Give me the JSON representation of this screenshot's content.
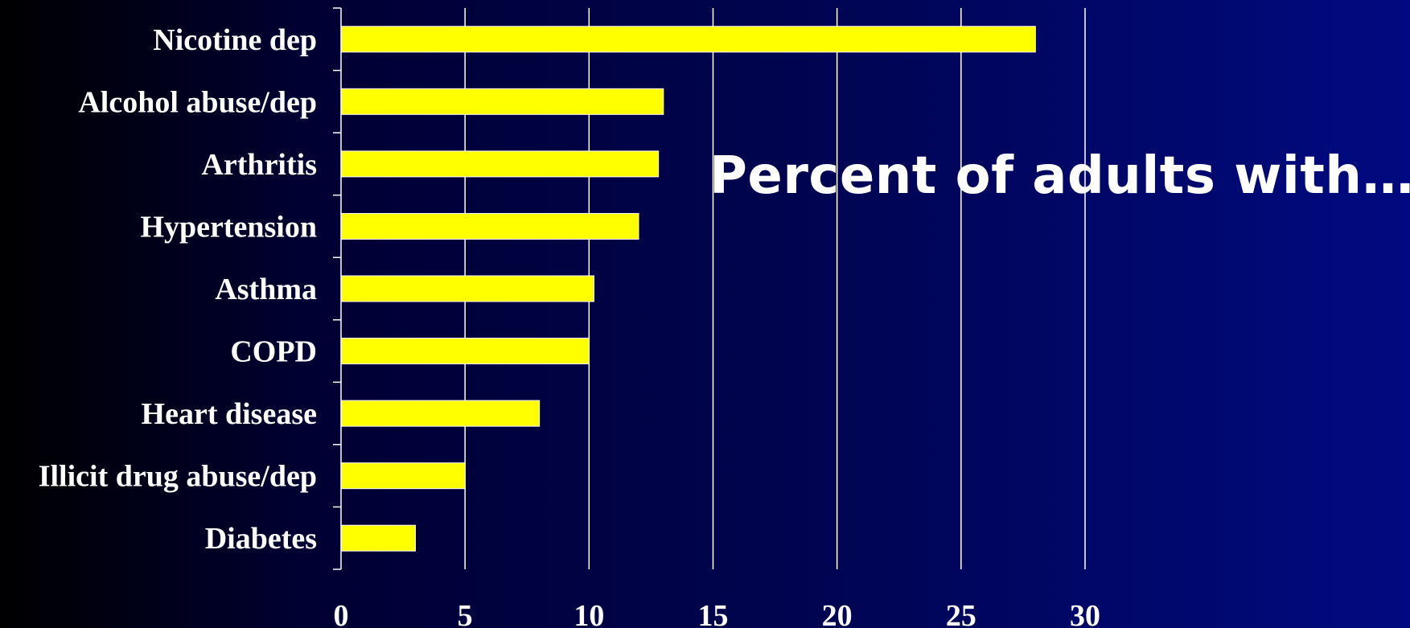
{
  "chart_data": {
    "type": "bar",
    "orientation": "horizontal",
    "title": "Percent of adults with…",
    "categories": [
      "Nicotine dep",
      "Alcohol abuse/dep",
      "Arthritis",
      "Hypertension",
      "Asthma",
      "COPD",
      "Heart disease",
      "Illicit drug abuse/dep",
      "Diabetes"
    ],
    "values": [
      28,
      13,
      12.8,
      12,
      10.2,
      10,
      8,
      5,
      3
    ],
    "xlim": [
      0,
      30
    ],
    "xticks": [
      "0",
      "5",
      "10",
      "15",
      "20",
      "25",
      "30"
    ],
    "grid": "vertical",
    "legend": "none",
    "colors": {
      "bar_fill": "#ffff00",
      "bar_stroke": "#ffffff",
      "grid": "#ffffff",
      "text": "#ffffff"
    }
  }
}
